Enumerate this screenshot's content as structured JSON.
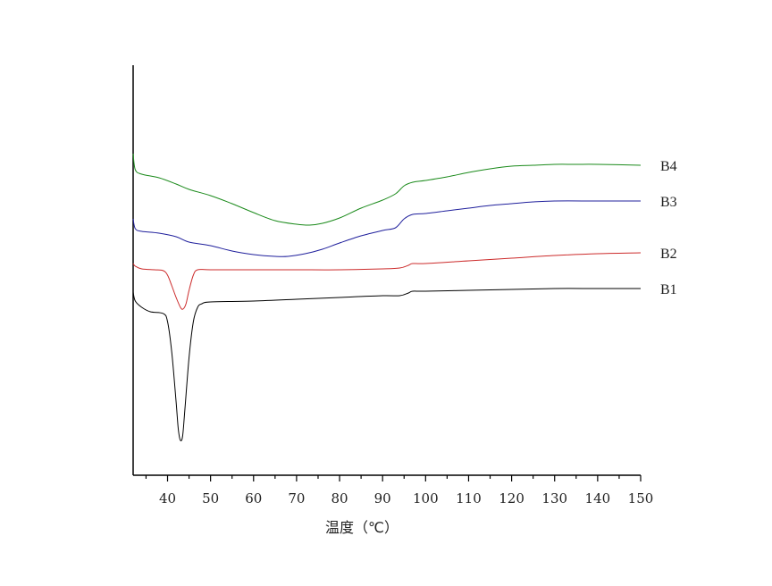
{
  "chart_data": {
    "type": "line",
    "xlabel": "温度（℃）",
    "ylabel": "",
    "xlim": [
      32,
      150
    ],
    "x_ticks": [
      40,
      50,
      60,
      70,
      80,
      90,
      100,
      110,
      120,
      130,
      140,
      150
    ],
    "x_minor_ticks": [
      35,
      45,
      55,
      65,
      75,
      85,
      95,
      105,
      115,
      125,
      135,
      145
    ],
    "y_axis": "no tick labels",
    "grid": false,
    "series": [
      {
        "name": "B4",
        "color": "#1a8a1a",
        "points": [
          [
            32,
            172
          ],
          [
            32.5,
            190
          ],
          [
            34,
            195
          ],
          [
            38,
            199
          ],
          [
            42,
            206
          ],
          [
            45,
            212
          ],
          [
            50,
            219
          ],
          [
            55,
            228
          ],
          [
            60,
            238
          ],
          [
            65,
            247
          ],
          [
            70,
            251
          ],
          [
            73,
            252
          ],
          [
            76,
            250
          ],
          [
            80,
            244
          ],
          [
            85,
            233
          ],
          [
            90,
            224
          ],
          [
            93,
            217
          ],
          [
            95,
            208
          ],
          [
            97,
            204
          ],
          [
            100,
            202
          ],
          [
            105,
            198
          ],
          [
            110,
            193
          ],
          [
            115,
            189
          ],
          [
            120,
            186
          ],
          [
            125,
            185
          ],
          [
            130,
            184
          ],
          [
            135,
            184
          ],
          [
            140,
            184
          ],
          [
            150,
            185
          ]
        ]
      },
      {
        "name": "B3",
        "color": "#1f1f9c",
        "points": [
          [
            32,
            245
          ],
          [
            32.5,
            256
          ],
          [
            34,
            259
          ],
          [
            38,
            261
          ],
          [
            42,
            265
          ],
          [
            45,
            271
          ],
          [
            50,
            275
          ],
          [
            55,
            281
          ],
          [
            60,
            285
          ],
          [
            65,
            287
          ],
          [
            68,
            287
          ],
          [
            72,
            284
          ],
          [
            76,
            279
          ],
          [
            80,
            272
          ],
          [
            85,
            264
          ],
          [
            90,
            258
          ],
          [
            93,
            255
          ],
          [
            95,
            245
          ],
          [
            97,
            240
          ],
          [
            100,
            239
          ],
          [
            105,
            236
          ],
          [
            110,
            233
          ],
          [
            115,
            230
          ],
          [
            120,
            228
          ],
          [
            125,
            226
          ],
          [
            130,
            225
          ],
          [
            140,
            225
          ],
          [
            150,
            225
          ]
        ]
      },
      {
        "name": "B2",
        "color": "#cc2b2b",
        "points": [
          [
            32,
            295
          ],
          [
            32.5,
            298
          ],
          [
            34,
            301
          ],
          [
            37,
            302
          ],
          [
            39,
            303
          ],
          [
            40,
            308
          ],
          [
            41,
            320
          ],
          [
            42,
            333
          ],
          [
            43,
            344
          ],
          [
            43.6,
            346
          ],
          [
            44.3,
            340
          ],
          [
            45,
            325
          ],
          [
            46,
            308
          ],
          [
            47,
            302
          ],
          [
            50,
            302
          ],
          [
            60,
            302
          ],
          [
            70,
            302
          ],
          [
            80,
            302
          ],
          [
            90,
            301
          ],
          [
            94,
            300
          ],
          [
            96,
            297
          ],
          [
            97,
            295
          ],
          [
            100,
            295
          ],
          [
            110,
            292
          ],
          [
            120,
            289
          ],
          [
            130,
            286
          ],
          [
            140,
            284
          ],
          [
            150,
            283
          ]
        ]
      },
      {
        "name": "B1",
        "color": "#000000",
        "points": [
          [
            32,
            327
          ],
          [
            32.5,
            337
          ],
          [
            34,
            344
          ],
          [
            36,
            349
          ],
          [
            39,
            351
          ],
          [
            40,
            360
          ],
          [
            41,
            395
          ],
          [
            42,
            450
          ],
          [
            42.5,
            480
          ],
          [
            43,
            493
          ],
          [
            43.5,
            488
          ],
          [
            44,
            460
          ],
          [
            45,
            400
          ],
          [
            46,
            360
          ],
          [
            47,
            344
          ],
          [
            48,
            340
          ],
          [
            50,
            338
          ],
          [
            60,
            337
          ],
          [
            70,
            335
          ],
          [
            80,
            333
          ],
          [
            90,
            331
          ],
          [
            94,
            331
          ],
          [
            96,
            328
          ],
          [
            97,
            326
          ],
          [
            100,
            326
          ],
          [
            110,
            325
          ],
          [
            120,
            324
          ],
          [
            130,
            323
          ],
          [
            140,
            323
          ],
          [
            150,
            323
          ]
        ]
      }
    ]
  }
}
